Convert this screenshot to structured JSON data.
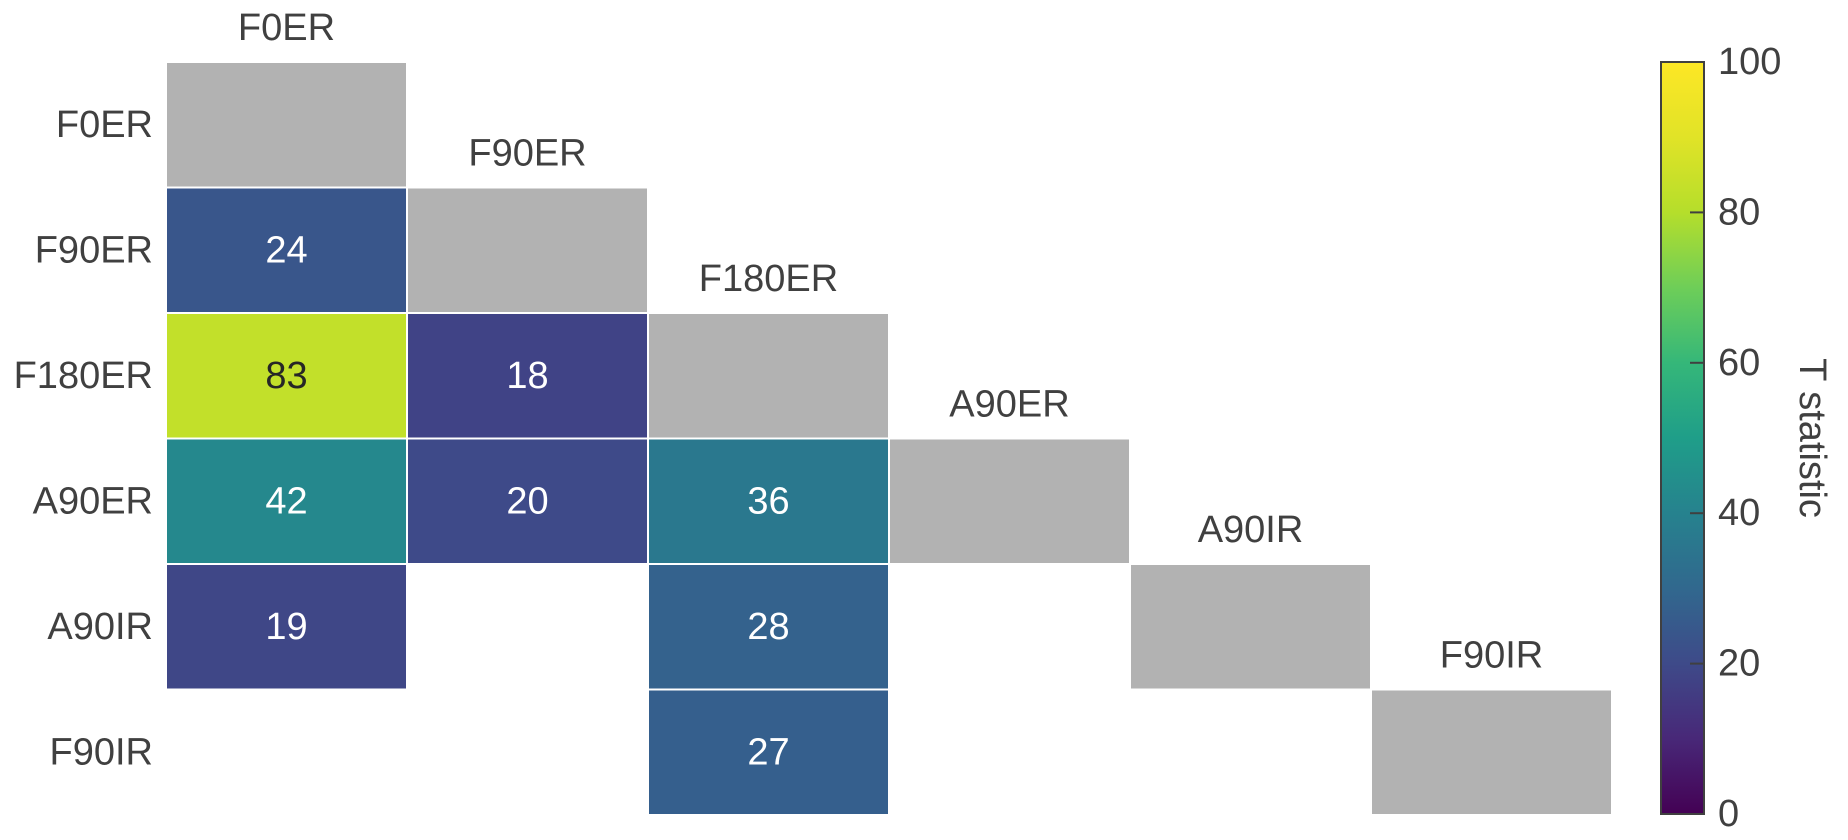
{
  "chart_data": {
    "type": "heatmap",
    "row_labels": [
      "F0ER",
      "F90ER",
      "F180ER",
      "A90ER",
      "A90IR",
      "F90IR"
    ],
    "col_labels": [
      "F0ER",
      "F90ER",
      "F180ER",
      "A90ER",
      "A90IR",
      "F90IR"
    ],
    "cells": [
      {
        "row": 1,
        "col": 0,
        "value": 24
      },
      {
        "row": 2,
        "col": 0,
        "value": 83
      },
      {
        "row": 2,
        "col": 1,
        "value": 18
      },
      {
        "row": 3,
        "col": 0,
        "value": 42
      },
      {
        "row": 3,
        "col": 1,
        "value": 20
      },
      {
        "row": 3,
        "col": 2,
        "value": 36
      },
      {
        "row": 4,
        "col": 0,
        "value": 19
      },
      {
        "row": 4,
        "col": 2,
        "value": 28
      },
      {
        "row": 5,
        "col": 2,
        "value": 27
      }
    ],
    "diagonal_color": "#b2b2b2",
    "colormap": "viridis",
    "colorbar": {
      "label": "T statistic",
      "range": [
        0,
        100
      ],
      "ticks": [
        0,
        20,
        40,
        60,
        80,
        100
      ]
    }
  }
}
